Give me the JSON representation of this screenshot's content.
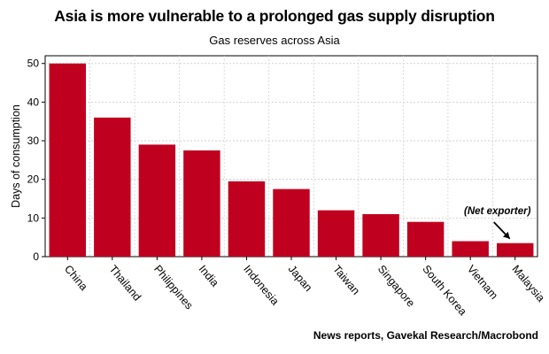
{
  "chart_data": {
    "type": "bar",
    "title": "Asia is more vulnerable to a prolonged gas supply disruption",
    "subtitle": "Gas reserves across Asia",
    "ylabel": "Days of consumption",
    "xlabel": "",
    "ylim": [
      0,
      52
    ],
    "yticks": [
      0,
      10,
      20,
      30,
      40,
      50
    ],
    "grid": true,
    "categories": [
      "China",
      "Thailand",
      "Philippines",
      "India",
      "Indonesia",
      "Japan",
      "Taiwan",
      "Singapore",
      "South Korea",
      "Vietnam",
      "Malaysia"
    ],
    "values": [
      50,
      36,
      29,
      27.5,
      19.5,
      17.5,
      12,
      11,
      9,
      4,
      3.5
    ],
    "bar_color": "#c0001f",
    "annotation": {
      "text": "(Net exporter)",
      "target": "Malaysia"
    },
    "source": "News reports, Gavekal Research/Macrobond"
  }
}
